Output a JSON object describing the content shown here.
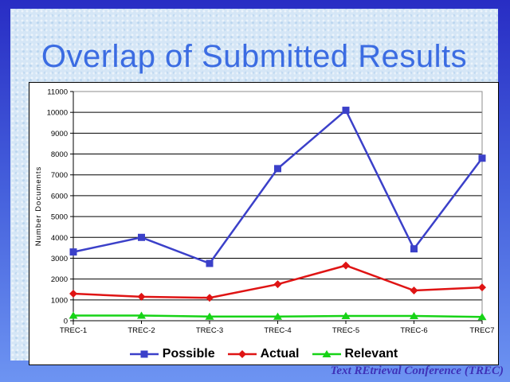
{
  "slide": {
    "title": "Overlap of Submitted Results",
    "footer": "Text REtrieval Conference (TREC)"
  },
  "chart_data": {
    "type": "line",
    "categories": [
      "TREC-1",
      "TREC-2",
      "TREC-3",
      "TREC-4",
      "TREC-5",
      "TREC-6",
      "TREC7"
    ],
    "series": [
      {
        "name": "Possible",
        "marker": "square",
        "color": "#3b40c9",
        "values": [
          3300,
          4000,
          2750,
          7300,
          10100,
          3450,
          7800
        ]
      },
      {
        "name": "Actual",
        "marker": "diamond",
        "color": "#df1414",
        "values": [
          1300,
          1150,
          1100,
          1750,
          2650,
          1450,
          1600
        ]
      },
      {
        "name": "Relevant",
        "marker": "triangle",
        "color": "#17d317",
        "values": [
          250,
          250,
          200,
          200,
          230,
          230,
          180
        ]
      }
    ],
    "xlabel": "",
    "ylabel": "Number Documents",
    "ylim": [
      0,
      11000
    ],
    "ytick_step": 1000,
    "grid": true,
    "legend_position": "bottom"
  },
  "colors": {
    "border_gradient_top": "#282dc4",
    "border_gradient_bottom": "#6d94f2",
    "panel_background": "#d5e6f6",
    "title_text": "#3b6ce2",
    "footer_text": "#3e32b8",
    "chart_background": "#ffffff",
    "gridline": "#000000",
    "plot_border": "#8c8c8c",
    "legend_text": "#000000"
  }
}
